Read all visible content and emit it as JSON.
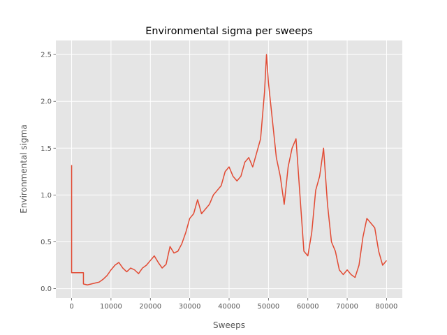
{
  "chart_data": {
    "type": "line",
    "title": "Environmental sigma per sweeps",
    "xlabel": "Sweeps",
    "ylabel": "Environmental sigma",
    "xlim": [
      -4000,
      84000
    ],
    "ylim": [
      -0.1,
      2.65
    ],
    "xticks": [
      0,
      10000,
      20000,
      30000,
      40000,
      50000,
      60000,
      70000,
      80000
    ],
    "xtick_labels": [
      "0",
      "10000",
      "20000",
      "30000",
      "40000",
      "50000",
      "60000",
      "70000",
      "80000"
    ],
    "yticks": [
      0.0,
      0.5,
      1.0,
      1.5,
      2.0,
      2.5
    ],
    "ytick_labels": [
      "0.0",
      "0.5",
      "1.0",
      "1.5",
      "2.0",
      "2.5"
    ],
    "grid": true,
    "style": "ggplot",
    "colors": {
      "series": "#E24A33",
      "panel": "#E5E5E5",
      "grid": "#FFFFFF",
      "text": "#555555"
    },
    "series": [
      {
        "x": [
          0,
          0,
          50,
          3000,
          3000,
          4000,
          5000,
          6000,
          7000,
          8000,
          9000,
          10000,
          11000,
          12000,
          13000,
          14000,
          15000,
          16000,
          17000,
          18000,
          19000,
          20000,
          21000,
          22000,
          23000,
          24000,
          25000,
          26000,
          27000,
          28000,
          29000,
          30000,
          31000,
          32000,
          33000,
          34000,
          35000,
          36000,
          37000,
          38000,
          39000,
          40000,
          41000,
          42000,
          43000,
          44000,
          45000,
          46000,
          47000,
          48000,
          49000,
          49500,
          50000,
          51000,
          52000,
          53000,
          54000,
          55000,
          56000,
          57000,
          58000,
          59000,
          60000,
          61000,
          62000,
          63000,
          64000,
          65000,
          66000,
          67000,
          68000,
          69000,
          70000,
          71000,
          72000,
          73000,
          74000,
          75000,
          76000,
          77000,
          78000,
          79000,
          80000
        ],
        "y": [
          1.32,
          0.17,
          0.17,
          0.17,
          0.05,
          0.04,
          0.05,
          0.06,
          0.07,
          0.1,
          0.14,
          0.2,
          0.25,
          0.28,
          0.22,
          0.18,
          0.22,
          0.2,
          0.16,
          0.22,
          0.25,
          0.3,
          0.35,
          0.28,
          0.22,
          0.26,
          0.45,
          0.38,
          0.4,
          0.48,
          0.6,
          0.75,
          0.8,
          0.95,
          0.8,
          0.85,
          0.9,
          1.0,
          1.05,
          1.1,
          1.25,
          1.3,
          1.2,
          1.15,
          1.2,
          1.35,
          1.4,
          1.3,
          1.45,
          1.6,
          2.1,
          2.5,
          2.2,
          1.8,
          1.4,
          1.2,
          0.9,
          1.3,
          1.5,
          1.6,
          1.0,
          0.4,
          0.35,
          0.6,
          1.05,
          1.2,
          1.5,
          0.9,
          0.5,
          0.4,
          0.2,
          0.15,
          0.2,
          0.15,
          0.12,
          0.25,
          0.55,
          0.75,
          0.7,
          0.65,
          0.4,
          0.25,
          0.3
        ]
      }
    ]
  }
}
